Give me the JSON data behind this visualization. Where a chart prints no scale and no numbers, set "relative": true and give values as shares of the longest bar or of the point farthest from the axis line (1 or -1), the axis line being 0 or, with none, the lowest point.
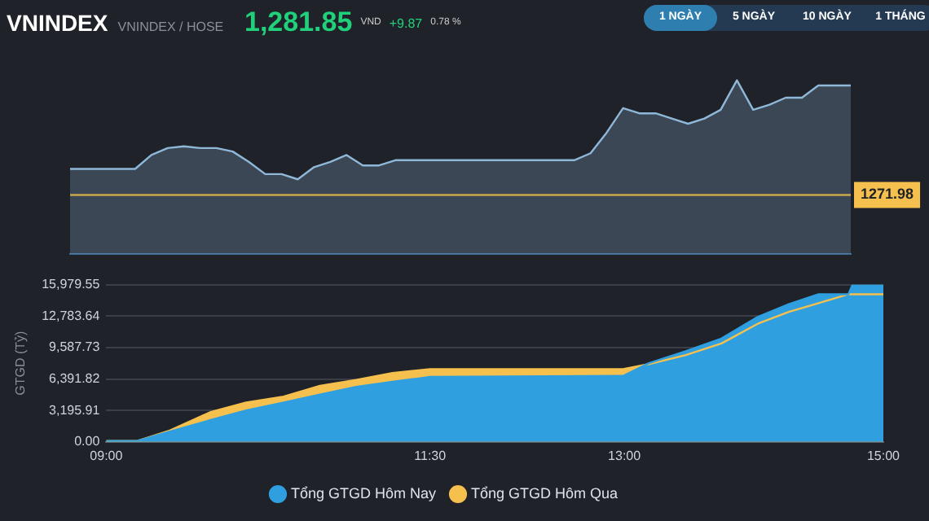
{
  "chart_data": [
    {
      "type": "area",
      "title": "VNINDEX",
      "subtitle": "VNINDEX / HOSE",
      "annotations": [
        "1,281.85",
        "VND",
        "+9.87",
        "0.78 %",
        "1 NGÀY",
        "5 NGÀY",
        "10 NGÀY",
        "1 THÁNG",
        {
          "text": "1271.98",
          "y": 0.34
        }
      ],
      "relative": true,
      "categories": [
        null,
        null,
        null,
        null,
        null,
        null,
        null,
        null,
        null,
        null,
        null,
        null,
        null,
        null,
        null,
        null,
        null,
        null,
        null,
        null,
        null,
        null,
        null,
        null,
        null,
        null,
        null,
        null,
        null,
        null,
        null,
        null,
        null,
        null,
        null,
        null,
        null,
        null,
        null,
        null,
        null,
        null,
        null,
        null,
        null,
        null,
        null,
        null,
        null
      ],
      "series": [
        {
          "color": "#8fb8d8",
          "values": [
            0.49,
            0.49,
            0.49,
            0.49,
            0.49,
            0.57,
            0.61,
            0.62,
            0.61,
            0.61,
            0.59,
            0.53,
            0.46,
            0.46,
            0.43,
            0.5,
            0.53,
            0.57,
            0.51,
            0.51,
            0.54,
            0.54,
            0.54,
            0.54,
            0.54,
            0.54,
            0.54,
            0.54,
            0.54,
            0.54,
            0.54,
            0.54,
            0.58,
            0.7,
            0.84,
            0.81,
            0.81,
            0.78,
            0.75,
            0.78,
            0.83,
            1,
            0.83,
            0.86,
            0.9,
            0.9,
            0.97,
            0.97,
            0.97
          ]
        }
      ],
      "ref_lines": [
        {
          "axis": "y",
          "value": 0.34,
          "color": "#c9a94a"
        }
      ],
      "tick_labels": false,
      "grid": false,
      "legend": false
    },
    {
      "type": "area",
      "ylabel": "GTGD (Tỷ)",
      "xlim": [
        9,
        15
      ],
      "xticks": [
        {
          "value": 9,
          "label": "09:00"
        },
        {
          "value": 11.5,
          "label": "11:30"
        },
        {
          "value": 13,
          "label": "13:00"
        },
        {
          "value": 15,
          "label": "15:00"
        }
      ],
      "ylim": [
        0,
        15979.55
      ],
      "yticks": [
        {
          "value": 0,
          "label": "0.00"
        },
        {
          "value": 3195.91,
          "label": "3,195.91"
        },
        {
          "value": 6391.82,
          "label": "6,391.82"
        },
        {
          "value": 9587.73,
          "label": "9,587.73"
        },
        {
          "value": 12783.64,
          "label": "12,783.64"
        },
        {
          "value": 15979.55,
          "label": "15,979.55"
        }
      ],
      "grid": "y",
      "legend": "bottom",
      "series": [
        {
          "name": "Tổng GTGD Hôm Nay",
          "color": "#2f9fe0",
          "x": [
            9.0,
            9.24,
            9.48,
            9.8,
            10.08,
            10.37,
            10.65,
            10.93,
            11.21,
            11.5,
            12.99,
            13.19,
            13.47,
            13.75,
            14.03,
            14.27,
            14.5,
            14.73,
            14.76,
            15.0
          ],
          "values": [
            100,
            100,
            1000,
            2200,
            3200,
            4000,
            4800,
            5600,
            6100,
            6600,
            6700,
            8000,
            9200,
            10500,
            12700,
            14000,
            15000,
            15000,
            15900,
            15900
          ]
        },
        {
          "name": "Tổng GTGD Hôm Qua",
          "color": "#f5c04e",
          "x": [
            9.0,
            9.24,
            9.48,
            9.8,
            10.08,
            10.37,
            10.65,
            10.93,
            11.21,
            11.5,
            12.99,
            13.19,
            13.47,
            13.75,
            14.03,
            14.27,
            14.5,
            14.73,
            15.0
          ],
          "values": [
            100,
            100,
            1100,
            3000,
            4000,
            4600,
            5700,
            6300,
            7000,
            7400,
            7400,
            7900,
            8800,
            10000,
            12000,
            13200,
            14100,
            15000,
            15000
          ]
        }
      ]
    }
  ]
}
